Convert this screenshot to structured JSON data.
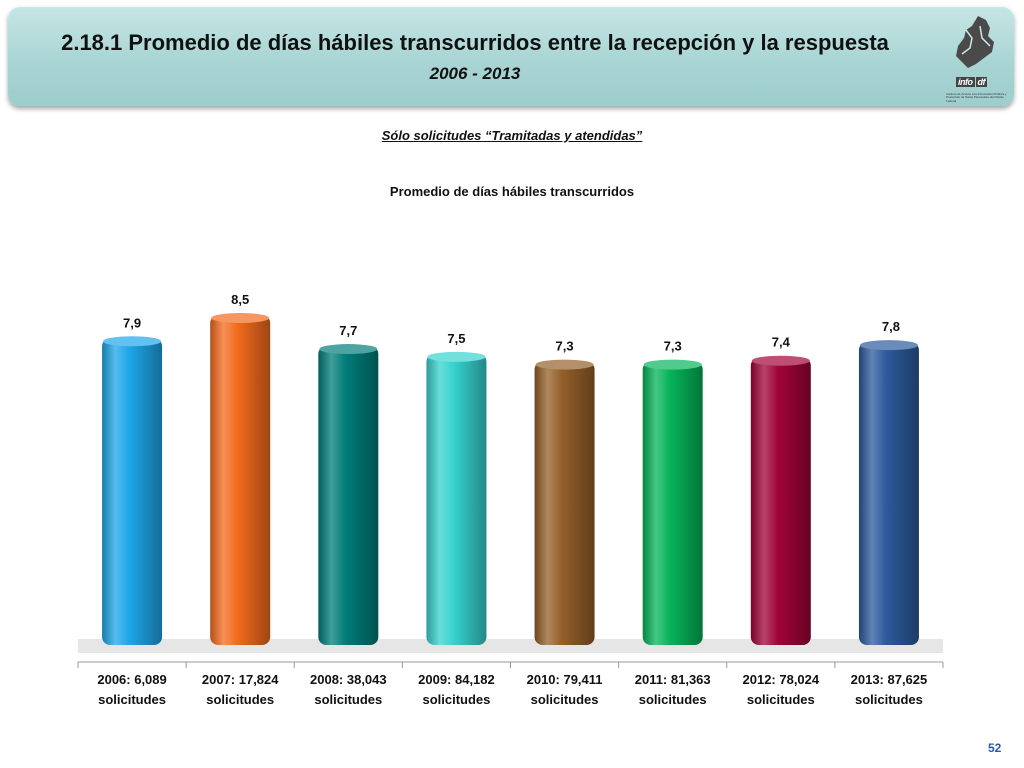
{
  "header": {
    "title": "2.18.1 Promedio de días hábiles transcurridos entre la recepción y la respuesta",
    "subtitle": "2006 - 2013",
    "logo_text": "info",
    "logo_suffix": "df",
    "logo_caption": "Instituto de Acceso a la Información Pública y Protección de Datos Personales del Distrito Federal"
  },
  "note": "Sólo solicitudes “Tramitadas y atendidas”",
  "page_number": "52",
  "chart_data": {
    "type": "bar",
    "title": "Promedio de días hábiles transcurridos",
    "categories": [
      [
        "2006: 6,089",
        "solicitudes"
      ],
      [
        "2007: 17,824",
        "solicitudes"
      ],
      [
        "2008: 38,043",
        "solicitudes"
      ],
      [
        "2009: 84,182",
        "solicitudes"
      ],
      [
        "2010: 79,411",
        "solicitudes"
      ],
      [
        "2011: 81,363",
        "solicitudes"
      ],
      [
        "2012: 78,024",
        "solicitudes"
      ],
      [
        "2013: 87,625",
        "solicitudes"
      ]
    ],
    "values": [
      7.9,
      8.5,
      7.7,
      7.5,
      7.3,
      7.3,
      7.4,
      7.8
    ],
    "value_labels": [
      "7,9",
      "8,5",
      "7,7",
      "7,5",
      "7,3",
      "7,3",
      "7,4",
      "7,8"
    ],
    "colors": [
      "#1ea6e8",
      "#f26b1d",
      "#007d7a",
      "#36d3cf",
      "#94602a",
      "#06b45a",
      "#a00438",
      "#2c5a9c"
    ],
    "ylim": [
      0,
      9
    ],
    "grid": false,
    "legend": "none"
  }
}
